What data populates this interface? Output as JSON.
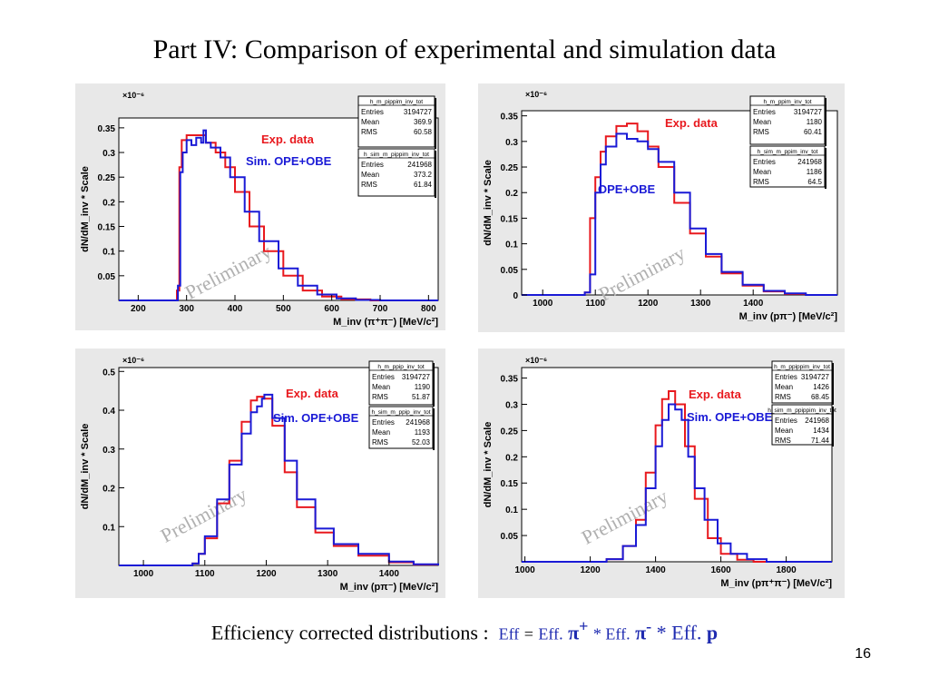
{
  "slide": {
    "title": "Part IV: Comparison of experimental  and simulation data",
    "footer": {
      "prefix": "Efficiency corrected distributions :",
      "eff": "Eff",
      "eq": "=",
      "eff2": "Eff.",
      "pi_plus": "π",
      "plus_sup": "+",
      "star1": "* Eff.",
      "pi_minus": "π",
      "minus_sup": "-",
      "star2": "* Eff.",
      "p": "p"
    },
    "page_number": "16"
  },
  "colors": {
    "exp": "#e8191e",
    "sim": "#1a1ad6",
    "watermark": "#b0b0b0"
  },
  "chart_data": [
    {
      "type": "line",
      "exponent_label": "×10⁻⁶",
      "ylabel": "dN/dM_inv * Scale",
      "xlabel": "M_inv (π⁺π⁻)  [MeV/c²]",
      "xlim": [
        160,
        820
      ],
      "ylim": [
        0,
        0.37
      ],
      "xticks": [
        200,
        300,
        400,
        500,
        600,
        700,
        800
      ],
      "yticks": [
        0.05,
        0.1,
        0.15,
        0.2,
        0.25,
        0.3,
        0.35
      ],
      "ytick_labels": [
        "0.05",
        "0.1",
        "0.15",
        "0.2",
        "0.25",
        "0.3",
        "0.35"
      ],
      "watermark": "Preliminary",
      "series": [
        {
          "name": "Exp. data",
          "color": "#e8191e",
          "x": [
            160,
            275,
            280,
            285,
            290,
            300,
            320,
            340,
            360,
            380,
            400,
            430,
            460,
            500,
            540,
            580,
            620,
            680,
            820
          ],
          "y": [
            0,
            0,
            0.02,
            0.27,
            0.325,
            0.335,
            0.335,
            0.32,
            0.3,
            0.27,
            0.22,
            0.15,
            0.1,
            0.05,
            0.02,
            0.008,
            0.002,
            0,
            0
          ]
        },
        {
          "name": "Sim. OPE+OBE",
          "color": "#1a1ad6",
          "x": [
            160,
            278,
            282,
            287,
            292,
            300,
            310,
            320,
            330,
            335,
            340,
            350,
            370,
            390,
            420,
            450,
            490,
            530,
            570,
            610,
            650,
            700,
            820
          ],
          "y": [
            0,
            0,
            0.03,
            0.26,
            0.3,
            0.325,
            0.315,
            0.33,
            0.32,
            0.345,
            0.32,
            0.31,
            0.29,
            0.25,
            0.18,
            0.12,
            0.065,
            0.03,
            0.012,
            0.004,
            0.001,
            0,
            0
          ]
        }
      ],
      "stats": [
        {
          "header": "h_m_pippim_inv_tot",
          "rows": [
            [
              "Entries",
              "3194727"
            ],
            [
              "Mean",
              "369.9"
            ],
            [
              "RMS",
              "60.58"
            ]
          ]
        },
        {
          "header": "h_sim_m_pippim_inv_tot",
          "rows": [
            [
              "Entries",
              "241968"
            ],
            [
              "Mean",
              "373.2"
            ],
            [
              "RMS",
              "61.84"
            ]
          ]
        }
      ]
    },
    {
      "type": "line",
      "exponent_label": "×10⁻⁶",
      "ylabel": "dN/dM_inv * Scale",
      "xlabel": "M_inv (pπ⁻)  [MeV/c²]",
      "xlim": [
        960,
        1560
      ],
      "ylim": [
        0,
        0.36
      ],
      "xticks": [
        1000,
        1100,
        1200,
        1300,
        1400
      ],
      "yticks": [
        0,
        0.05,
        0.1,
        0.15,
        0.2,
        0.25,
        0.3,
        0.35
      ],
      "ytick_labels": [
        "0",
        "0.05",
        "0.1",
        "0.15",
        "0.2",
        "0.25",
        "0.3",
        "0.35"
      ],
      "watermark": "Preliminary",
      "series": [
        {
          "name": "Exp. data",
          "color": "#e8191e",
          "x": [
            960,
            1076,
            1080,
            1090,
            1100,
            1110,
            1120,
            1140,
            1160,
            1180,
            1200,
            1220,
            1250,
            1280,
            1310,
            1340,
            1380,
            1420,
            1460,
            1500,
            1560
          ],
          "y": [
            0,
            0,
            0.005,
            0.15,
            0.23,
            0.28,
            0.31,
            0.33,
            0.335,
            0.32,
            0.29,
            0.25,
            0.18,
            0.12,
            0.075,
            0.042,
            0.018,
            0.007,
            0.002,
            0,
            0
          ]
        },
        {
          "name": "OPE+OBE",
          "color": "#1a1ad6",
          "x": [
            960,
            1076,
            1080,
            1090,
            1100,
            1110,
            1120,
            1140,
            1160,
            1180,
            1200,
            1220,
            1250,
            1280,
            1310,
            1340,
            1380,
            1420,
            1460,
            1500,
            1560
          ],
          "y": [
            0,
            0,
            0.005,
            0.04,
            0.2,
            0.255,
            0.29,
            0.315,
            0.305,
            0.3,
            0.285,
            0.26,
            0.2,
            0.13,
            0.08,
            0.045,
            0.02,
            0.008,
            0.003,
            0,
            0
          ]
        }
      ],
      "stats": [
        {
          "header": "h_m_ppim_inv_tot",
          "rows": [
            [
              "Entries",
              "3194727"
            ],
            [
              "Mean",
              "1180"
            ],
            [
              "RMS",
              "60.41"
            ]
          ]
        },
        {
          "header": "h_sim_m_ppim_inv_tot",
          "rows": [
            [
              "Entries",
              "241968"
            ],
            [
              "Mean",
              "1186"
            ],
            [
              "RMS",
              "64.5"
            ]
          ]
        }
      ]
    },
    {
      "type": "line",
      "exponent_label": "×10⁻⁶",
      "ylabel": "dN/dM_inv * Scale",
      "xlabel": "M_inv (pπ⁻)  [MeV/c²]",
      "xlim": [
        960,
        1480
      ],
      "ylim": [
        0,
        0.51
      ],
      "xticks": [
        1000,
        1100,
        1200,
        1300,
        1400
      ],
      "yticks": [
        0.1,
        0.2,
        0.3,
        0.4,
        0.5
      ],
      "ytick_labels": [
        "0.1",
        "0.2",
        "0.3",
        "0.4",
        "0.5"
      ],
      "watermark": "Preliminary",
      "series": [
        {
          "name": "Exp. data",
          "color": "#e8191e",
          "x": [
            960,
            1076,
            1080,
            1090,
            1100,
            1120,
            1140,
            1160,
            1175,
            1185,
            1195,
            1210,
            1230,
            1250,
            1280,
            1310,
            1350,
            1400,
            1440,
            1480
          ],
          "y": [
            0,
            0,
            0.005,
            0.03,
            0.07,
            0.16,
            0.27,
            0.37,
            0.425,
            0.435,
            0.43,
            0.36,
            0.24,
            0.15,
            0.085,
            0.05,
            0.025,
            0.008,
            0.002,
            0
          ]
        },
        {
          "name": "Sim. OPE+OBE",
          "color": "#1a1ad6",
          "x": [
            960,
            1076,
            1080,
            1090,
            1100,
            1120,
            1140,
            1160,
            1175,
            1185,
            1193,
            1197,
            1210,
            1230,
            1250,
            1280,
            1310,
            1350,
            1400,
            1440,
            1480
          ],
          "y": [
            0,
            0,
            0.005,
            0.03,
            0.075,
            0.17,
            0.26,
            0.34,
            0.395,
            0.41,
            0.43,
            0.44,
            0.38,
            0.27,
            0.17,
            0.095,
            0.055,
            0.03,
            0.01,
            0.003,
            0
          ]
        }
      ],
      "stats": [
        {
          "header": "h_m_ppip_inv_tot",
          "rows": [
            [
              "Entries",
              "3194727"
            ],
            [
              "Mean",
              "1190"
            ],
            [
              "RMS",
              "51.87"
            ]
          ]
        },
        {
          "header": "h_sim_m_ppip_inv_tot",
          "rows": [
            [
              "Entries",
              "241968"
            ],
            [
              "Mean",
              "1193"
            ],
            [
              "RMS",
              "52.03"
            ]
          ]
        }
      ]
    },
    {
      "type": "line",
      "exponent_label": "×10⁻⁶",
      "ylabel": "dN/dM_inv * Scale",
      "xlabel": "M_inv (pπ⁺π⁻)  [MeV/c²]",
      "xlim": [
        990,
        1940
      ],
      "ylim": [
        0,
        0.37
      ],
      "xticks": [
        1000,
        1200,
        1400,
        1600,
        1800
      ],
      "yticks": [
        0.05,
        0.1,
        0.15,
        0.2,
        0.25,
        0.3,
        0.35
      ],
      "ytick_labels": [
        "0.05",
        "0.1",
        "0.15",
        "0.2",
        "0.25",
        "0.3",
        "0.35"
      ],
      "watermark": "Preliminary",
      "series": [
        {
          "name": "Exp. data",
          "color": "#e8191e",
          "x": [
            990,
            1200,
            1250,
            1300,
            1340,
            1370,
            1400,
            1420,
            1440,
            1460,
            1490,
            1520,
            1560,
            1600,
            1650,
            1700,
            1940
          ],
          "y": [
            0,
            0,
            0.005,
            0.03,
            0.08,
            0.17,
            0.26,
            0.31,
            0.325,
            0.3,
            0.22,
            0.12,
            0.045,
            0.015,
            0.004,
            0,
            0
          ]
        },
        {
          "name": "Sim. OPE+OBE",
          "color": "#1a1ad6",
          "x": [
            990,
            1200,
            1250,
            1300,
            1340,
            1370,
            1400,
            1420,
            1440,
            1460,
            1480,
            1500,
            1520,
            1550,
            1590,
            1630,
            1680,
            1740,
            1940
          ],
          "y": [
            0,
            0,
            0.005,
            0.03,
            0.07,
            0.14,
            0.22,
            0.27,
            0.3,
            0.29,
            0.27,
            0.2,
            0.14,
            0.08,
            0.035,
            0.015,
            0.005,
            0,
            0
          ]
        }
      ],
      "stats": [
        {
          "header": "h_m_ppippim_inv_tot",
          "rows": [
            [
              "Entries",
              "3194727"
            ],
            [
              "Mean",
              "1426"
            ],
            [
              "RMS",
              "68.45"
            ]
          ]
        },
        {
          "header": "h_sim_m_ppippim_inv_tot",
          "rows": [
            [
              "Entries",
              "241968"
            ],
            [
              "Mean",
              "1434"
            ],
            [
              "RMS",
              "71.44"
            ]
          ]
        }
      ]
    }
  ]
}
